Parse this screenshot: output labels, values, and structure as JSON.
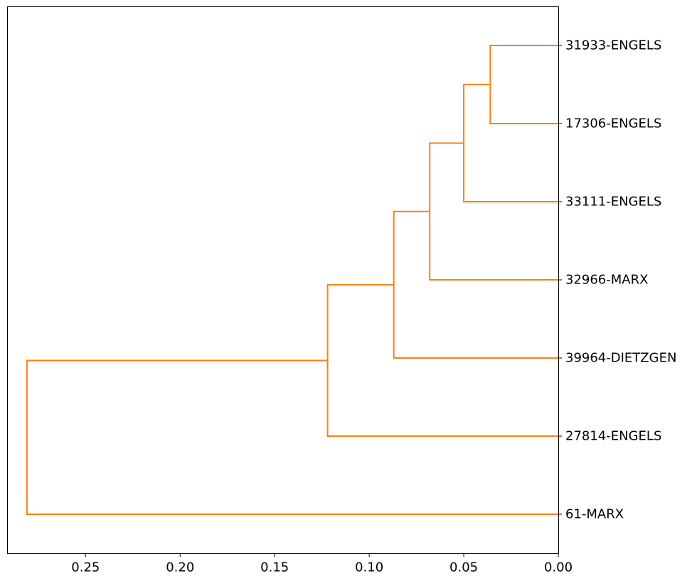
{
  "chart_data": {
    "type": "dendrogram",
    "orientation": "left",
    "title": "",
    "xlabel": "",
    "ylabel": "",
    "xlim": [
      0.2915,
      0.0
    ],
    "grid": false,
    "link_color": "#ff7f0e",
    "leaves": [
      "31933-ENGELS",
      "17306-ENGELS",
      "33111-ENGELS",
      "32966-MARX",
      "39964-DIETZGEN",
      "27814-ENGELS",
      "61-MARX"
    ],
    "x_ticks": [
      {
        "value": 0.25,
        "label": "0.25"
      },
      {
        "value": 0.2,
        "label": "0.20"
      },
      {
        "value": 0.15,
        "label": "0.15"
      },
      {
        "value": 0.1,
        "label": "0.10"
      },
      {
        "value": 0.05,
        "label": "0.05"
      },
      {
        "value": 0.0,
        "label": "0.00"
      }
    ],
    "merges": [
      {
        "left": "31933-ENGELS",
        "right": "17306-ENGELS",
        "distance": 0.036
      },
      {
        "left": "cluster-1",
        "right": "33111-ENGELS",
        "distance": 0.05
      },
      {
        "left": "cluster-2",
        "right": "32966-MARX",
        "distance": 0.068
      },
      {
        "left": "cluster-3",
        "right": "39964-DIETZGEN",
        "distance": 0.087
      },
      {
        "left": "cluster-4",
        "right": "27814-ENGELS",
        "distance": 0.122
      },
      {
        "left": "cluster-5",
        "right": "61-MARX",
        "distance": 0.281
      }
    ]
  }
}
